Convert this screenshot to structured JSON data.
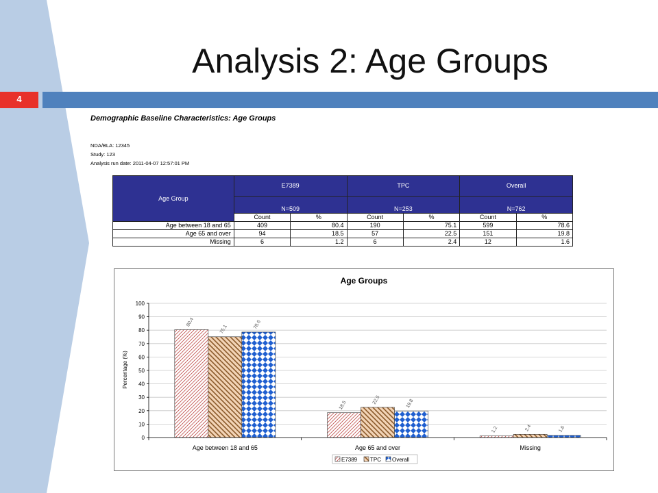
{
  "slide": {
    "title": "Analysis 2: Age Groups",
    "number": "4",
    "colors": {
      "band": "#b9cde5",
      "bar": "#4f81bd",
      "number_box": "#e8312a",
      "table_header": "#2e3192"
    }
  },
  "report": {
    "heading": "Demographic Baseline Characteristics: Age Groups",
    "nda": "NDA/BLA: 12345",
    "study": "Study: 123",
    "run_date": "Analysis run date: 2011-04-07 12:57:01 PM"
  },
  "table": {
    "age_group_header": "Age Group",
    "groups": [
      {
        "name": "E7389",
        "n": "N=509"
      },
      {
        "name": "TPC",
        "n": "N=253"
      },
      {
        "name": "Overall",
        "n": "N=762"
      }
    ],
    "count_label": "Count",
    "pct_label": "%",
    "rows": [
      {
        "label": "Age between 18 and 65",
        "cells": [
          "409",
          "80.4",
          "190",
          "75.1",
          "599",
          "78.6"
        ]
      },
      {
        "label": "Age 65 and over",
        "cells": [
          "94",
          "18.5",
          "57",
          "22.5",
          "151",
          "19.8"
        ]
      },
      {
        "label": "Missing",
        "cells": [
          "6",
          "1.2",
          "6",
          "2.4",
          "12",
          "1.6"
        ]
      }
    ]
  },
  "chart_data": {
    "type": "bar",
    "title": "Age Groups",
    "xlabel": "",
    "ylabel": "Percentage (%)",
    "ylim": [
      0,
      100
    ],
    "yticks": [
      0,
      10,
      20,
      30,
      40,
      50,
      60,
      70,
      80,
      90,
      100
    ],
    "grid": true,
    "legend": "bottom",
    "categories": [
      "Age between 18 and 65",
      "Age 65 and over",
      "Missing"
    ],
    "series": [
      {
        "name": "E7389",
        "values": [
          80.4,
          18.5,
          1.2
        ],
        "pattern": "fine-diagonal",
        "color": "#c0504d"
      },
      {
        "name": "TPC",
        "values": [
          75.1,
          22.5,
          2.4
        ],
        "pattern": "coarse-diagonal",
        "color": "#8b5a2b"
      },
      {
        "name": "Overall",
        "values": [
          78.6,
          19.8,
          1.6
        ],
        "pattern": "diamond-checker",
        "color": "#1f5fd0"
      }
    ]
  }
}
